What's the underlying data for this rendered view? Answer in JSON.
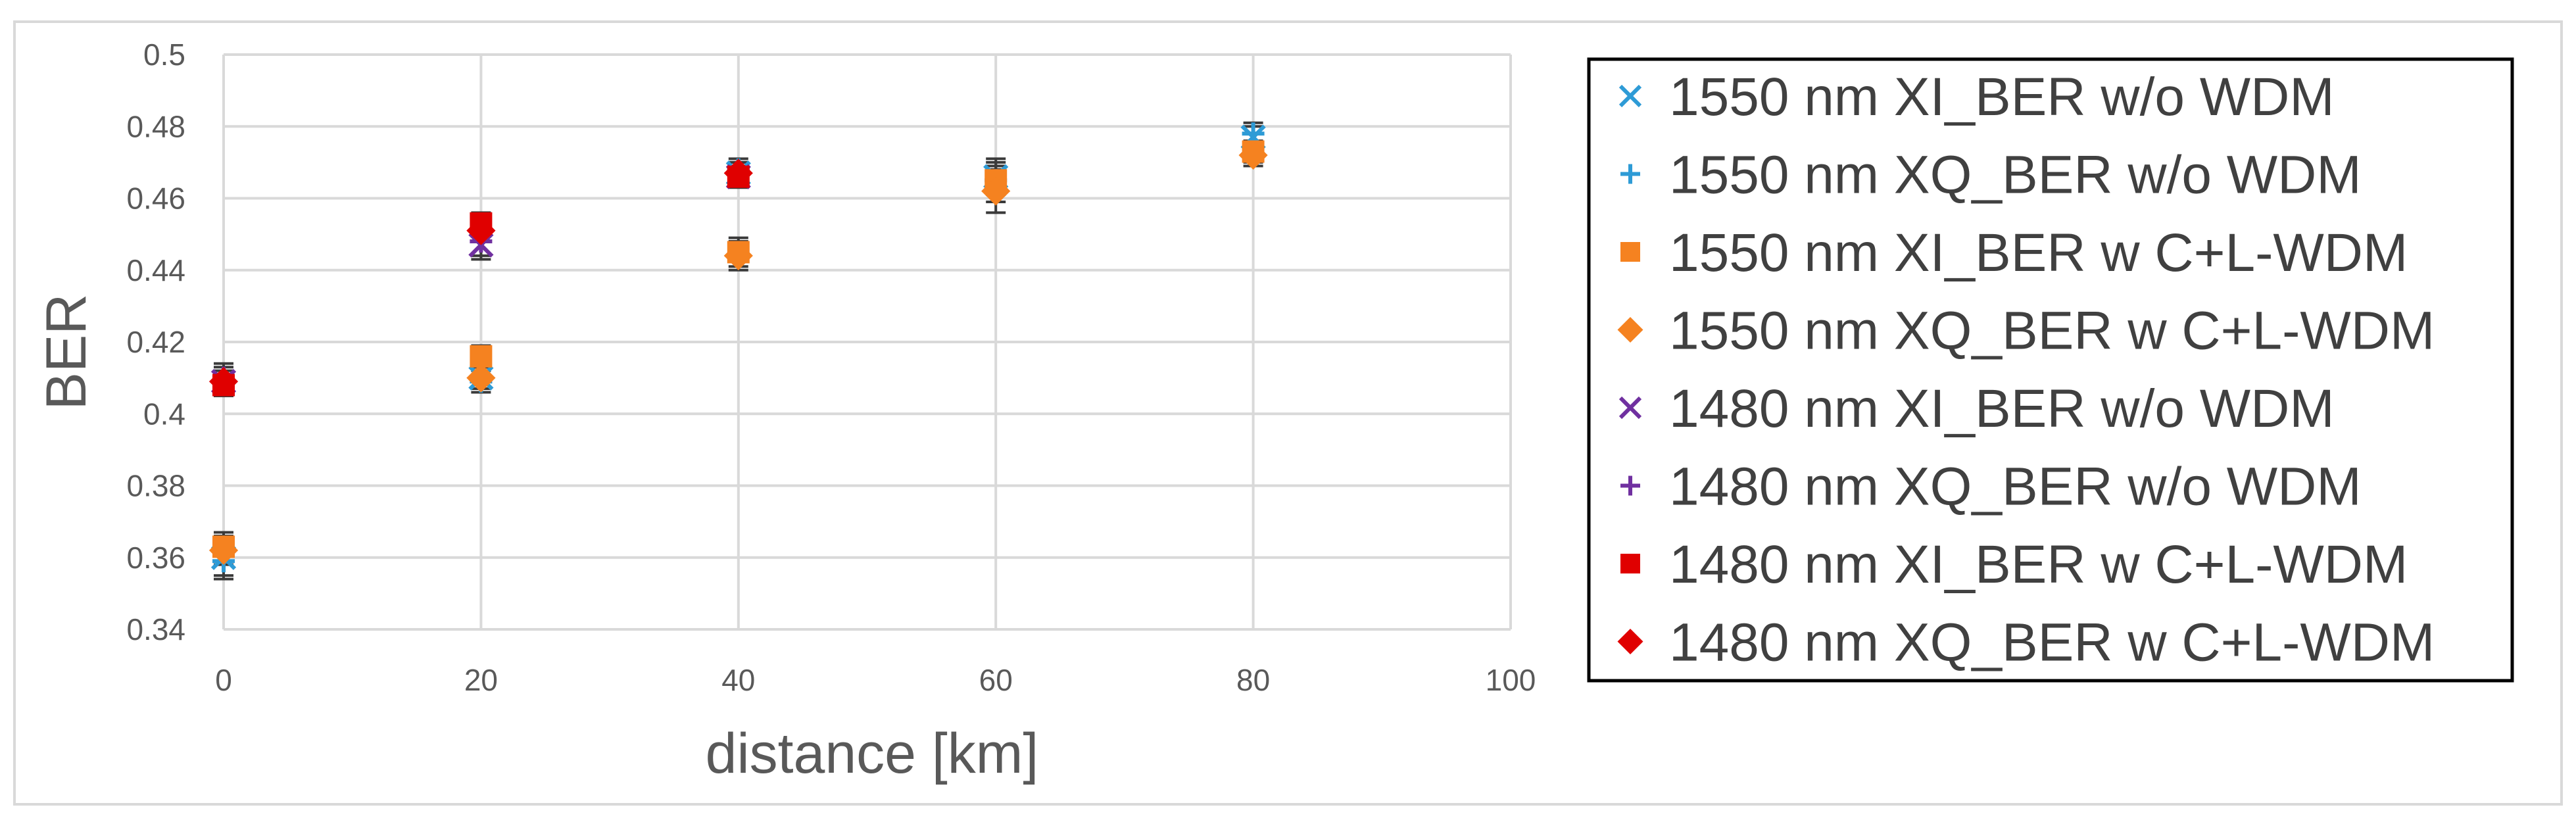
{
  "chart_data": {
    "type": "scatter",
    "xlabel": "distance [km]",
    "ylabel": "BER",
    "xlim": [
      0,
      100
    ],
    "ylim": [
      0.34,
      0.5
    ],
    "xticks": [
      "0",
      "20",
      "40",
      "60",
      "80",
      "100"
    ],
    "yticks": [
      "0.34",
      "0.36",
      "0.38",
      "0.4",
      "0.42",
      "0.44",
      "0.46",
      "0.48",
      "0.5"
    ],
    "grid": true,
    "error_bars": true,
    "legend_position": "right",
    "series": [
      {
        "name": "1550 nm XI_BER w/o WDM",
        "marker": "x",
        "color": "#2E9BD6",
        "x": [
          0,
          20,
          40,
          60,
          80
        ],
        "y": [
          0.36,
          0.41,
          0.467,
          0.466,
          0.477
        ],
        "err": [
          0.005,
          0.003,
          0.003,
          0.004,
          0.003
        ]
      },
      {
        "name": "1550 nm XQ_BER w/o WDM",
        "marker": "+",
        "color": "#2E9BD6",
        "x": [
          0,
          20,
          40,
          60,
          80
        ],
        "y": [
          0.359,
          0.409,
          0.468,
          0.465,
          0.478
        ],
        "err": [
          0.005,
          0.003,
          0.003,
          0.004,
          0.003
        ]
      },
      {
        "name": "1550 nm XI_BER w C+L-WDM",
        "marker": "square",
        "color": "#F58220",
        "x": [
          0,
          20,
          40,
          60,
          80
        ],
        "y": [
          0.363,
          0.416,
          0.445,
          0.465,
          0.473
        ],
        "err": [
          0.004,
          0.003,
          0.004,
          0.006,
          0.003
        ]
      },
      {
        "name": "1550 nm XQ_BER w C+L-WDM",
        "marker": "diamond",
        "color": "#F58220",
        "x": [
          0,
          20,
          40,
          60,
          80
        ],
        "y": [
          0.362,
          0.41,
          0.444,
          0.462,
          0.472
        ],
        "err": [
          0.004,
          0.003,
          0.004,
          0.006,
          0.003
        ]
      },
      {
        "name": "1480 nm XI_BER w/o WDM",
        "marker": "x",
        "color": "#7030A0",
        "x": [
          0,
          20,
          40
        ],
        "y": [
          0.409,
          0.447,
          0.466
        ],
        "err": [
          0.004,
          0.004,
          0.003
        ]
      },
      {
        "name": "1480 nm XQ_BER w/o WDM",
        "marker": "+",
        "color": "#7030A0",
        "x": [
          0,
          20,
          40
        ],
        "y": [
          0.41,
          0.448,
          0.467
        ],
        "err": [
          0.004,
          0.004,
          0.003
        ]
      },
      {
        "name": "1480 nm XI_BER w C+L-WDM",
        "marker": "square",
        "color": "#E00000",
        "x": [
          0,
          20,
          40
        ],
        "y": [
          0.408,
          0.453,
          0.466
        ],
        "err": [
          0.003,
          0.003,
          0.003
        ]
      },
      {
        "name": "1480 nm XQ_BER w C+L-WDM",
        "marker": "diamond",
        "color": "#E00000",
        "x": [
          0,
          20,
          40
        ],
        "y": [
          0.409,
          0.451,
          0.467
        ],
        "err": [
          0.003,
          0.003,
          0.003
        ]
      }
    ]
  }
}
